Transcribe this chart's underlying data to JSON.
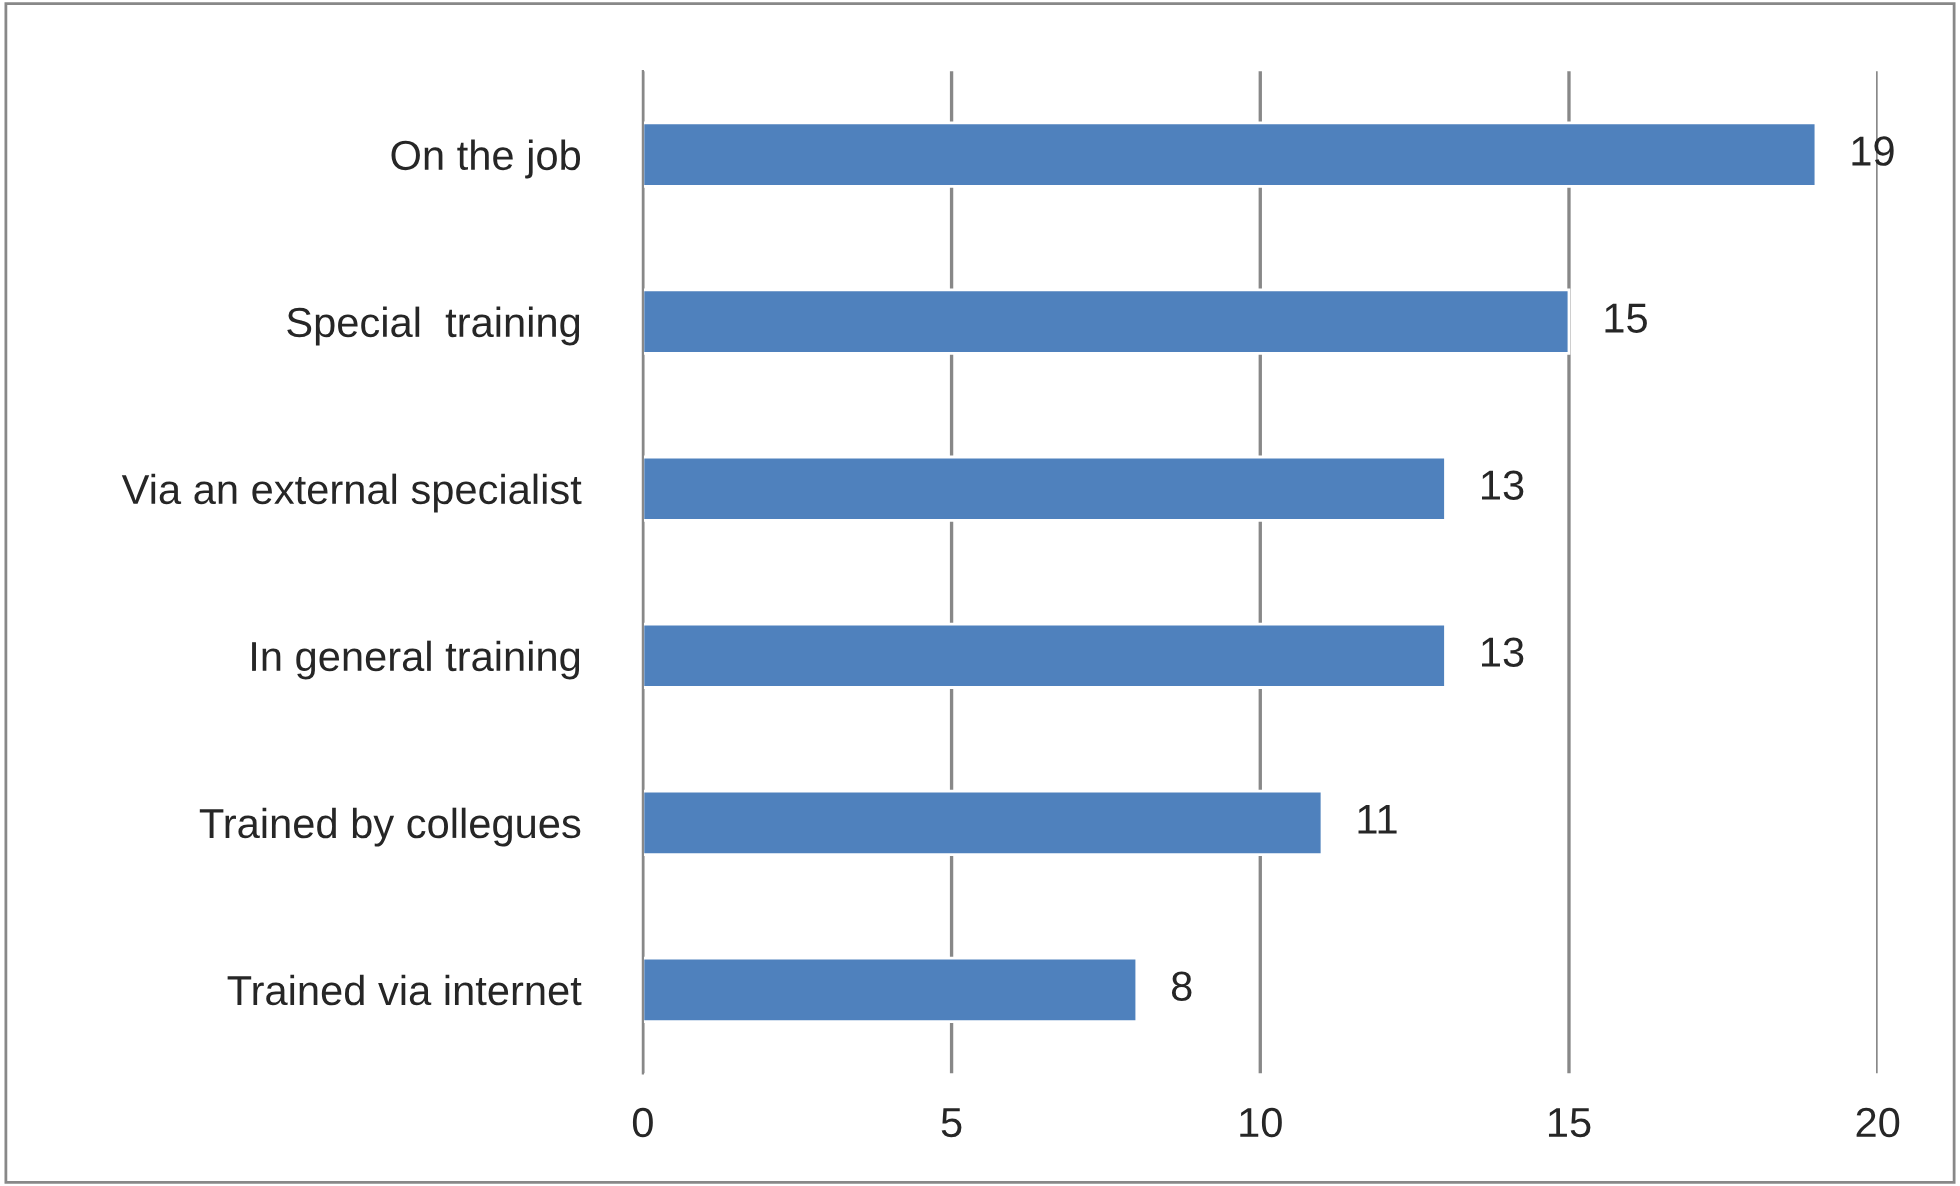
{
  "chart_data": {
    "type": "bar",
    "orientation": "horizontal",
    "categories": [
      "On the job",
      "Special  training",
      "Via an external specialist",
      "In general training",
      "Trained by collegues",
      "Trained via internet"
    ],
    "values": [
      19,
      15,
      13,
      13,
      11,
      8
    ],
    "color": "#4f81bd",
    "xlim": [
      0,
      20
    ],
    "xticks": [
      0,
      5,
      10,
      15,
      20
    ],
    "grid": "x",
    "data_labels": true,
    "legend": false
  }
}
